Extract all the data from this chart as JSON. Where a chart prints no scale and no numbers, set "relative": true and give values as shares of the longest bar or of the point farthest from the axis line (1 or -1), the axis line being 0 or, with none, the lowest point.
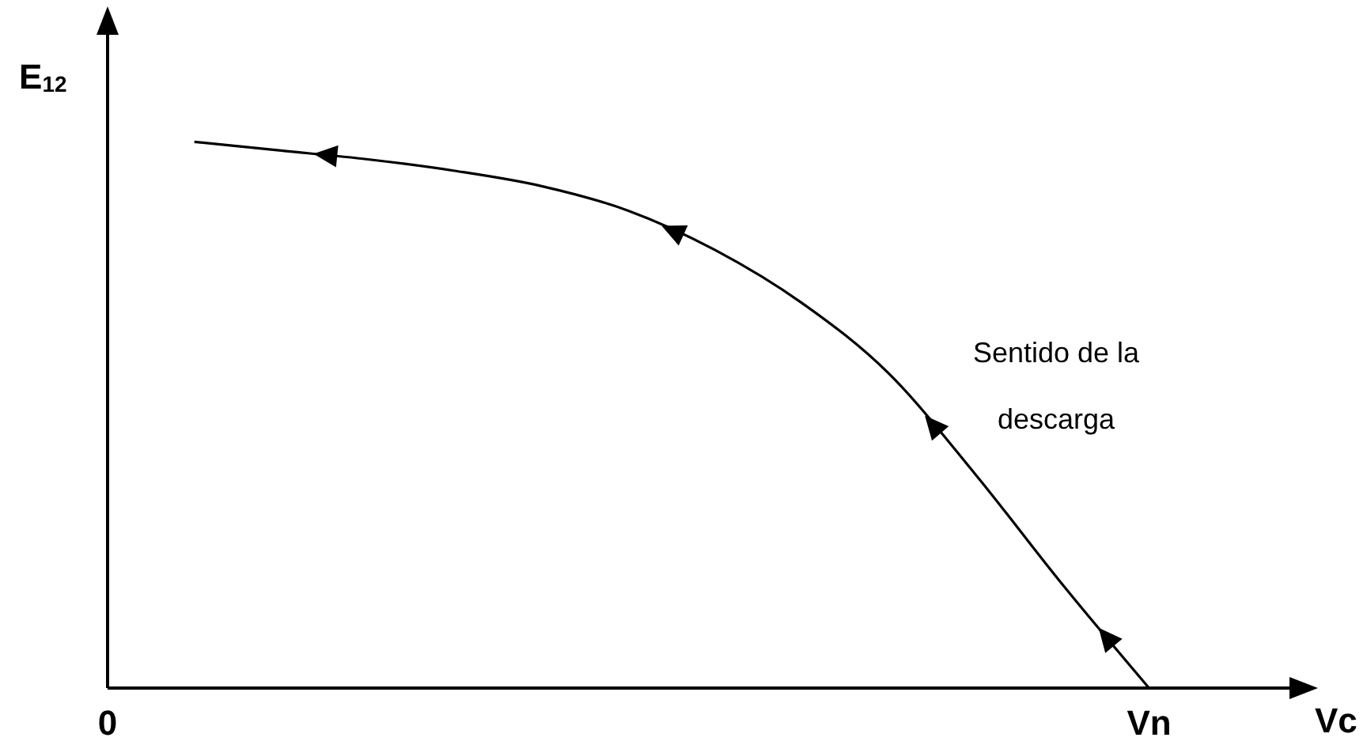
{
  "chart_data": {
    "type": "line",
    "relative": true,
    "xlabel": "Vc",
    "ylabel": "E$_{12}$",
    "annotations": [
      "Sentido de la descarga"
    ],
    "categories": [
      "0",
      null,
      null,
      null,
      null,
      null,
      null,
      null,
      null,
      null,
      null,
      null,
      "Vn",
      null
    ],
    "marker": "none",
    "line_style": "solid",
    "grid": false,
    "legend": false,
    "series": [
      {
        "color": "#000000",
        "values": [
          null,
          1,
          0.984,
          0.968,
          0.947,
          0.919,
          0.874,
          0.802,
          0.705,
          0.576,
          0.391,
          0.19,
          0,
          null
        ]
      }
    ]
  }
}
